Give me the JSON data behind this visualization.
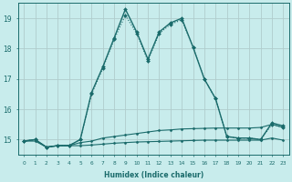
{
  "title": "",
  "xlabel": "Humidex (Indice chaleur)",
  "background_color": "#c8ecec",
  "grid_color": "#b0cccc",
  "line_color": "#1a6b6b",
  "x_min": -0.5,
  "x_max": 23.5,
  "y_min": 14.5,
  "y_max": 19.5,
  "yticks": [
    15,
    16,
    17,
    18,
    19
  ],
  "xticks": [
    0,
    1,
    2,
    3,
    4,
    5,
    6,
    7,
    8,
    9,
    10,
    11,
    12,
    13,
    14,
    15,
    16,
    17,
    18,
    19,
    20,
    21,
    22,
    23
  ],
  "series": [
    {
      "x": [
        0,
        1,
        2,
        3,
        4,
        5,
        6,
        7,
        8,
        9,
        10,
        11,
        12,
        13,
        14,
        15,
        16,
        17,
        18,
        19,
        20,
        21,
        22,
        23
      ],
      "y": [
        14.95,
        14.95,
        14.75,
        14.8,
        14.8,
        14.8,
        14.82,
        14.85,
        14.88,
        14.9,
        14.92,
        14.93,
        14.94,
        14.95,
        14.96,
        14.97,
        14.98,
        14.98,
        14.98,
        14.98,
        14.98,
        14.98,
        15.05,
        14.98
      ],
      "style": "-",
      "marker": "D",
      "markersize": 1.5,
      "linewidth": 0.8,
      "color": "#1a6b6b"
    },
    {
      "x": [
        0,
        1,
        2,
        3,
        4,
        5,
        6,
        7,
        8,
        9,
        10,
        11,
        12,
        13,
        14,
        15,
        16,
        17,
        18,
        19,
        20,
        21,
        22,
        23
      ],
      "y": [
        14.95,
        15.0,
        14.75,
        14.8,
        14.8,
        14.9,
        14.95,
        15.05,
        15.1,
        15.15,
        15.2,
        15.25,
        15.3,
        15.32,
        15.35,
        15.36,
        15.37,
        15.38,
        15.38,
        15.38,
        15.38,
        15.4,
        15.5,
        15.4
      ],
      "style": "-",
      "marker": "D",
      "markersize": 1.5,
      "linewidth": 0.8,
      "color": "#1a6b6b"
    },
    {
      "x": [
        0,
        1,
        2,
        3,
        4,
        5,
        6,
        7,
        8,
        9,
        10,
        11,
        12,
        13,
        14,
        15,
        16,
        17,
        18,
        19,
        20,
        21,
        22,
        23
      ],
      "y": [
        14.95,
        15.0,
        14.75,
        14.8,
        14.8,
        15.0,
        16.55,
        17.4,
        18.35,
        19.3,
        18.55,
        17.65,
        18.55,
        18.85,
        19.0,
        18.05,
        17.0,
        16.35,
        15.1,
        15.05,
        15.05,
        15.0,
        15.55,
        15.45
      ],
      "style": "-",
      "marker": "D",
      "markersize": 2.0,
      "linewidth": 1.0,
      "color": "#1a6b6b"
    },
    {
      "x": [
        0,
        1,
        2,
        3,
        4,
        5,
        6,
        7,
        8,
        9,
        10,
        11,
        12,
        13,
        14,
        15,
        16,
        17,
        18,
        19,
        20,
        21,
        22,
        23
      ],
      "y": [
        14.95,
        15.0,
        14.75,
        14.8,
        14.8,
        15.0,
        16.5,
        17.35,
        18.3,
        19.1,
        18.5,
        17.6,
        18.5,
        18.8,
        18.95,
        18.05,
        17.0,
        16.35,
        15.1,
        15.05,
        15.05,
        15.0,
        15.5,
        15.4
      ],
      "style": ":",
      "marker": "D",
      "markersize": 2.0,
      "linewidth": 0.8,
      "color": "#1a6b6b"
    }
  ]
}
